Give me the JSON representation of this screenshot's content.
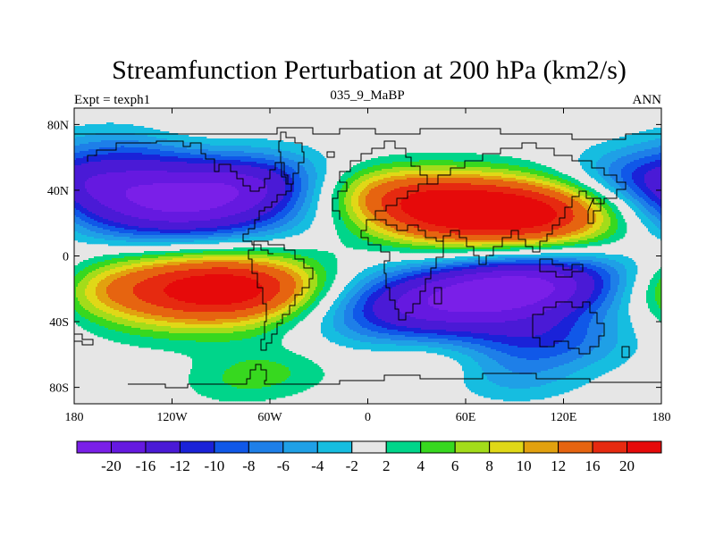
{
  "chart_data": {
    "type": "heatmap",
    "title": "Streamfunction Perturbation at 200 hPa (km2/s)",
    "left_string": "Expt = texph1",
    "center_string": "035_9_MaBP",
    "right_string": "ANN",
    "xlim": [
      -180,
      180
    ],
    "ylim": [
      -90,
      90
    ],
    "x_ticks": [
      {
        "value": -180,
        "label": "180"
      },
      {
        "value": -120,
        "label": "120W"
      },
      {
        "value": -60,
        "label": "60W"
      },
      {
        "value": 0,
        "label": "0"
      },
      {
        "value": 60,
        "label": "60E"
      },
      {
        "value": 120,
        "label": "120E"
      },
      {
        "value": 180,
        "label": "180"
      }
    ],
    "y_ticks": [
      {
        "value": 80,
        "label": "80N"
      },
      {
        "value": 40,
        "label": "40N"
      },
      {
        "value": 0,
        "label": "0"
      },
      {
        "value": -40,
        "label": "40S"
      },
      {
        "value": -80,
        "label": "80S"
      }
    ],
    "contour_levels": [
      -20,
      -16,
      -12,
      -10,
      -8,
      -6,
      -4,
      -2,
      2,
      4,
      6,
      8,
      10,
      12,
      16,
      20
    ],
    "colorbar_labels": [
      "-20",
      "-16",
      "-12",
      "-10",
      "-8",
      "-6",
      "-4",
      "-2",
      "2",
      "4",
      "6",
      "8",
      "10",
      "12",
      "16",
      "20"
    ],
    "colors": [
      "#7a1fe8",
      "#6519e0",
      "#4a1ad6",
      "#1a22d8",
      "#1058e8",
      "#1e7fe8",
      "#1fa0e6",
      "#16bde0",
      "#e6e6e6",
      "#00d58a",
      "#37d81f",
      "#a3dc1a",
      "#e0d817",
      "#e2a10f",
      "#e66410",
      "#e62a10",
      "#e60a0a"
    ],
    "field_features": [
      {
        "lon": -120,
        "lat": 32,
        "value": -21
      },
      {
        "lon": -65,
        "lat": 46,
        "value": -7
      },
      {
        "lon": -140,
        "lat": 68,
        "value": -5
      },
      {
        "lon": 168,
        "lat": 45,
        "value": -10
      },
      {
        "lon": 160,
        "lat": 22,
        "value": -5
      },
      {
        "lon": -105,
        "lat": -20,
        "value": 19
      },
      {
        "lon": -70,
        "lat": -20,
        "value": 8
      },
      {
        "lon": -175,
        "lat": -20,
        "value": 4
      },
      {
        "lon": 30,
        "lat": -31,
        "value": -16
      },
      {
        "lon": 118,
        "lat": -15,
        "value": -14
      },
      {
        "lon": 80,
        "lat": -20,
        "value": -8
      },
      {
        "lon": 110,
        "lat": -52,
        "value": -8
      },
      {
        "lon": 90,
        "lat": -75,
        "value": -4
      },
      {
        "lon": 70,
        "lat": 25,
        "value": 16
      },
      {
        "lon": 133,
        "lat": 26,
        "value": 15
      },
      {
        "lon": 35,
        "lat": 32,
        "value": 10
      },
      {
        "lon": 0,
        "lat": 42,
        "value": 5
      },
      {
        "lon": -120,
        "lat": 74,
        "value": 3
      },
      {
        "lon": -60,
        "lat": -70,
        "value": 4
      },
      {
        "lon": 35,
        "lat": -63,
        "value": 3
      },
      {
        "lon": -85,
        "lat": -80,
        "value": 2
      }
    ]
  }
}
